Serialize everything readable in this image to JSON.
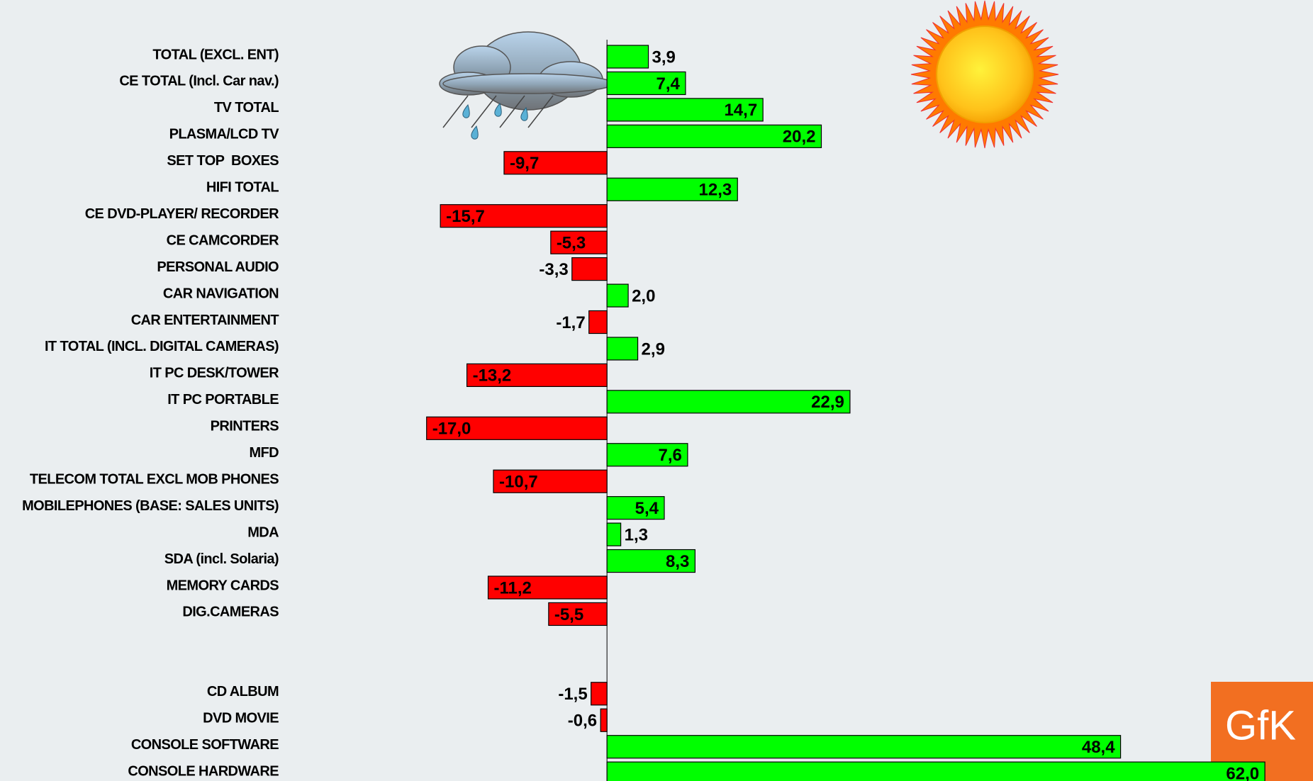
{
  "chart_data": {
    "type": "bar",
    "orientation": "horizontal",
    "categories": [
      "TOTAL (EXCL. ENT)",
      "CE TOTAL (Incl. Car nav.)",
      "TV TOTAL",
      "PLASMA/LCD TV",
      "SET TOP  BOXES",
      "HIFI TOTAL",
      "CE DVD-PLAYER/ RECORDER",
      "CE CAMCORDER",
      "PERSONAL AUDIO",
      "CAR NAVIGATION",
      "CAR ENTERTAINMENT",
      "IT TOTAL (INCL. DIGITAL CAMERAS)",
      "IT PC DESK/TOWER",
      "IT PC PORTABLE",
      "PRINTERS",
      "MFD",
      "TELECOM TOTAL EXCL MOB PHONES",
      "MOBILEPHONES (BASE: SALES UNITS)",
      "MDA",
      "SDA (incl. Solaria)",
      "MEMORY CARDS",
      "DIG.CAMERAS",
      null,
      null,
      "CD ALBUM",
      "DVD MOVIE",
      "CONSOLE SOFTWARE",
      "CONSOLE HARDWARE"
    ],
    "values": [
      3.9,
      7.4,
      14.7,
      20.2,
      -9.7,
      12.3,
      -15.7,
      -5.3,
      -3.3,
      2.0,
      -1.7,
      2.9,
      -13.2,
      22.9,
      -17.0,
      7.6,
      -10.7,
      5.4,
      1.3,
      8.3,
      -11.2,
      -5.5,
      null,
      null,
      -1.5,
      -0.6,
      48.4,
      62.0
    ],
    "value_labels": [
      "3,9",
      "7,4",
      "14,7",
      "20,2",
      "-9,7",
      "12,3",
      "-15,7",
      "-5,3",
      "-3,3",
      "2,0",
      "-1,7",
      "2,9",
      "-13,2",
      "22,9",
      "-17,0",
      "7,6",
      "-10,7",
      "5,4",
      "1,3",
      "8,3",
      "-11,2",
      "-5,5",
      null,
      null,
      "-1,5",
      "-0,6",
      "48,4",
      "62,0"
    ],
    "xlim": [
      -26,
      66
    ],
    "positive_color": "#00ff00",
    "negative_color": "#ff0000",
    "logo": "GfK"
  }
}
